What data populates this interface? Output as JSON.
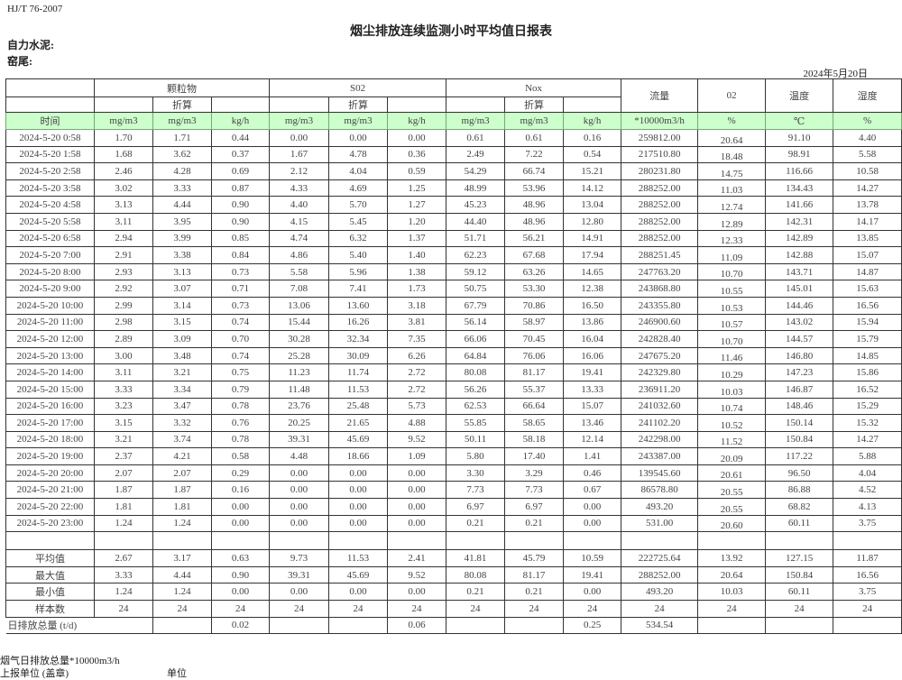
{
  "header": {
    "standard": "HJ/T  76-2007",
    "title": "烟尘排放连续监测小时平均值日报表",
    "company": "自力水泥:",
    "kiln": "窑尾:",
    "date": "2024年5月20日"
  },
  "table": {
    "groups": {
      "particulate": "颗粒物",
      "so2": "S02",
      "nox": "Nox",
      "flow": "流量",
      "o2": "02",
      "temp": "温度",
      "humidity": "湿度"
    },
    "converted": "折算",
    "units": [
      "时间",
      "mg/m3",
      "mg/m3",
      "kg/h",
      "mg/m3",
      "mg/m3",
      "kg/h",
      "mg/m3",
      "mg/m3",
      "kg/h",
      "*10000m3/h",
      "%",
      "℃",
      "%"
    ],
    "rows": [
      [
        "2024-5-20 0:58",
        "1.70",
        "1.71",
        "0.44",
        "0.00",
        "0.00",
        "0.00",
        "0.61",
        "0.61",
        "0.16",
        "259812.00",
        "20.64",
        "91.10",
        "4.40"
      ],
      [
        "2024-5-20 1:58",
        "1.68",
        "3.62",
        "0.37",
        "1.67",
        "4.78",
        "0.36",
        "2.49",
        "7.22",
        "0.54",
        "217510.80",
        "18.48",
        "98.91",
        "5.58"
      ],
      [
        "2024-5-20 2:58",
        "2.46",
        "4.28",
        "0.69",
        "2.12",
        "4.04",
        "0.59",
        "54.29",
        "66.74",
        "15.21",
        "280231.80",
        "14.75",
        "116.66",
        "10.58"
      ],
      [
        "2024-5-20 3:58",
        "3.02",
        "3.33",
        "0.87",
        "4.33",
        "4.69",
        "1.25",
        "48.99",
        "53.96",
        "14.12",
        "288252.00",
        "11.03",
        "134.43",
        "14.27"
      ],
      [
        "2024-5-20 4:58",
        "3.13",
        "4.44",
        "0.90",
        "4.40",
        "5.70",
        "1.27",
        "45.23",
        "48.96",
        "13.04",
        "288252.00",
        "12.74",
        "141.66",
        "13.78"
      ],
      [
        "2024-5-20 5:58",
        "3.11",
        "3.95",
        "0.90",
        "4.15",
        "5.45",
        "1.20",
        "44.40",
        "48.96",
        "12.80",
        "288252.00",
        "12.89",
        "142.31",
        "14.17"
      ],
      [
        "2024-5-20 6:58",
        "2.94",
        "3.99",
        "0.85",
        "4.74",
        "6.32",
        "1.37",
        "51.71",
        "56.21",
        "14.91",
        "288252.00",
        "12.33",
        "142.89",
        "13.85"
      ],
      [
        "2024-5-20 7:00",
        "2.91",
        "3.38",
        "0.84",
        "4.86",
        "5.40",
        "1.40",
        "62.23",
        "67.68",
        "17.94",
        "288251.45",
        "11.09",
        "142.88",
        "15.07"
      ],
      [
        "2024-5-20 8:00",
        "2.93",
        "3.13",
        "0.73",
        "5.58",
        "5.96",
        "1.38",
        "59.12",
        "63.26",
        "14.65",
        "247763.20",
        "10.70",
        "143.71",
        "14.87"
      ],
      [
        "2024-5-20 9:00",
        "2.92",
        "3.07",
        "0.71",
        "7.08",
        "7.41",
        "1.73",
        "50.75",
        "53.30",
        "12.38",
        "243868.80",
        "10.55",
        "145.01",
        "15.63"
      ],
      [
        "2024-5-20 10:00",
        "2.99",
        "3.14",
        "0.73",
        "13.06",
        "13.60",
        "3.18",
        "67.79",
        "70.86",
        "16.50",
        "243355.80",
        "10.53",
        "144.46",
        "16.56"
      ],
      [
        "2024-5-20 11:00",
        "2.98",
        "3.15",
        "0.74",
        "15.44",
        "16.26",
        "3.81",
        "56.14",
        "58.97",
        "13.86",
        "246900.60",
        "10.57",
        "143.02",
        "15.94"
      ],
      [
        "2024-5-20 12:00",
        "2.89",
        "3.09",
        "0.70",
        "30.28",
        "32.34",
        "7.35",
        "66.06",
        "70.45",
        "16.04",
        "242828.40",
        "10.70",
        "144.57",
        "15.79"
      ],
      [
        "2024-5-20 13:00",
        "3.00",
        "3.48",
        "0.74",
        "25.28",
        "30.09",
        "6.26",
        "64.84",
        "76.06",
        "16.06",
        "247675.20",
        "11.46",
        "146.80",
        "14.85"
      ],
      [
        "2024-5-20 14:00",
        "3.11",
        "3.21",
        "0.75",
        "11.23",
        "11.74",
        "2.72",
        "80.08",
        "81.17",
        "19.41",
        "242329.80",
        "10.29",
        "147.23",
        "15.86"
      ],
      [
        "2024-5-20 15:00",
        "3.33",
        "3.34",
        "0.79",
        "11.48",
        "11.53",
        "2.72",
        "56.26",
        "55.37",
        "13.33",
        "236911.20",
        "10.03",
        "146.87",
        "16.52"
      ],
      [
        "2024-5-20 16:00",
        "3.23",
        "3.47",
        "0.78",
        "23.76",
        "25.48",
        "5.73",
        "62.53",
        "66.64",
        "15.07",
        "241032.60",
        "10.74",
        "148.46",
        "15.29"
      ],
      [
        "2024-5-20 17:00",
        "3.15",
        "3.32",
        "0.76",
        "20.25",
        "21.65",
        "4.88",
        "55.85",
        "58.65",
        "13.46",
        "241102.20",
        "10.52",
        "150.14",
        "15.32"
      ],
      [
        "2024-5-20 18:00",
        "3.21",
        "3.74",
        "0.78",
        "39.31",
        "45.69",
        "9.52",
        "50.11",
        "58.18",
        "12.14",
        "242298.00",
        "11.52",
        "150.84",
        "14.27"
      ],
      [
        "2024-5-20 19:00",
        "2.37",
        "4.21",
        "0.58",
        "4.48",
        "18.66",
        "1.09",
        "5.80",
        "17.40",
        "1.41",
        "243387.00",
        "20.09",
        "117.22",
        "5.88"
      ],
      [
        "2024-5-20 20:00",
        "2.07",
        "2.07",
        "0.29",
        "0.00",
        "0.00",
        "0.00",
        "3.30",
        "3.29",
        "0.46",
        "139545.60",
        "20.61",
        "96.50",
        "4.04"
      ],
      [
        "2024-5-20 21:00",
        "1.87",
        "1.87",
        "0.16",
        "0.00",
        "0.00",
        "0.00",
        "7.73",
        "7.73",
        "0.67",
        "86578.80",
        "20.55",
        "86.88",
        "4.52"
      ],
      [
        "2024-5-20 22:00",
        "1.81",
        "1.81",
        "0.00",
        "0.00",
        "0.00",
        "0.00",
        "6.97",
        "6.97",
        "0.00",
        "493.20",
        "20.55",
        "68.82",
        "4.13"
      ],
      [
        "2024-5-20 23:00",
        "1.24",
        "1.24",
        "0.00",
        "0.00",
        "0.00",
        "0.00",
        "0.21",
        "0.21",
        "0.00",
        "531.00",
        "20.60",
        "60.11",
        "3.75"
      ]
    ],
    "summary": [
      [
        "平均值",
        "2.67",
        "3.17",
        "0.63",
        "9.73",
        "11.53",
        "2.41",
        "41.81",
        "45.79",
        "10.59",
        "222725.64",
        "13.92",
        "127.15",
        "11.87"
      ],
      [
        "最大值",
        "3.33",
        "4.44",
        "0.90",
        "39.31",
        "45.69",
        "9.52",
        "80.08",
        "81.17",
        "19.41",
        "288252.00",
        "20.64",
        "150.84",
        "16.56"
      ],
      [
        "最小值",
        "1.24",
        "1.24",
        "0.00",
        "0.00",
        "0.00",
        "0.00",
        "0.21",
        "0.21",
        "0.00",
        "493.20",
        "10.03",
        "60.11",
        "3.75"
      ],
      [
        "样本数",
        "24",
        "24",
        "24",
        "24",
        "24",
        "24",
        "24",
        "24",
        "24",
        "24",
        "24",
        "24",
        "24"
      ]
    ],
    "daily_total": [
      "日排放总量 (t/d)",
      "",
      "0.02",
      "",
      "",
      "0.06",
      "",
      "",
      "0.25",
      "534.54",
      "",
      "",
      ""
    ]
  },
  "footer": {
    "flue_total": "烟气日排放总量*10000m3/h",
    "reporting_unit": "上报单位 (盖章)",
    "unit": "单位"
  }
}
